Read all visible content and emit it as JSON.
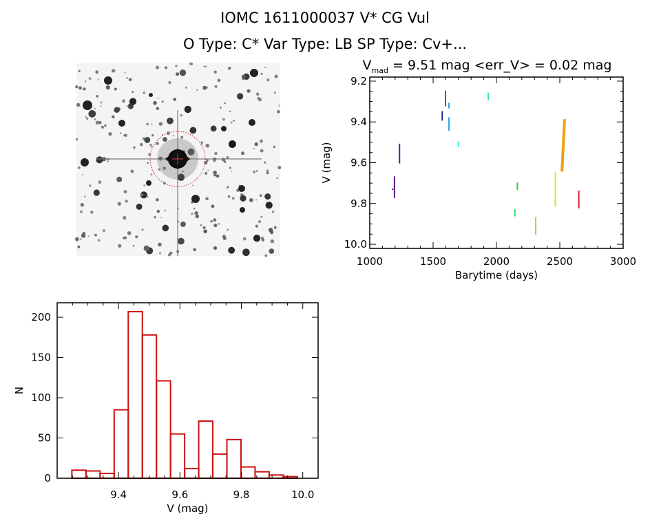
{
  "header": {
    "title": "IOMC 1611000037    V* CG Vul",
    "subtitle": "O Type: C*   Var Type: LB   SP Type: Cv+..."
  },
  "image_panel": {
    "description_icon": "star-field-image"
  },
  "chart_data": [
    {
      "type": "scatter",
      "title_main": "V",
      "title_sub": "mad",
      "title_rest": " = 9.51 mag <err_V> = 0.02 mag",
      "xlabel": "Barytime (days)",
      "ylabel": "V (mag)",
      "xlim": [
        1000,
        3000
      ],
      "ylim": [
        9.18,
        10.02
      ],
      "y_inverted": true,
      "xticks": [
        1000,
        1500,
        2000,
        2500,
        3000
      ],
      "yticks": [
        9.2,
        9.4,
        9.6,
        9.8,
        10.0
      ],
      "ytick_labels": [
        "9.2",
        "9.4",
        "9.6",
        "9.8",
        "10.0"
      ],
      "grid": false,
      "clusters": [
        {
          "x": 1195,
          "v_min": 9.67,
          "v_max": 9.77,
          "color": "#5a1a8a"
        },
        {
          "x": 1180,
          "v_min": 9.73,
          "v_max": 9.73,
          "color": "#5a1a8a"
        },
        {
          "x": 1235,
          "v_min": 9.51,
          "v_max": 9.6,
          "color": "#4b1a9a"
        },
        {
          "x": 1572,
          "v_min": 9.35,
          "v_max": 9.39,
          "color": "#1a2aa0"
        },
        {
          "x": 1598,
          "v_min": 9.25,
          "v_max": 9.32,
          "color": "#2060d0"
        },
        {
          "x": 1625,
          "v_min": 9.31,
          "v_max": 9.33,
          "color": "#30a0e0"
        },
        {
          "x": 1625,
          "v_min": 9.38,
          "v_max": 9.44,
          "color": "#30a8e0"
        },
        {
          "x": 1700,
          "v_min": 9.5,
          "v_max": 9.52,
          "color": "#30e0e0"
        },
        {
          "x": 1935,
          "v_min": 9.26,
          "v_max": 9.29,
          "color": "#30e0a0"
        },
        {
          "x": 2145,
          "v_min": 9.83,
          "v_max": 9.86,
          "color": "#30e060"
        },
        {
          "x": 2165,
          "v_min": 9.7,
          "v_max": 9.73,
          "color": "#30d030"
        },
        {
          "x": 2310,
          "v_min": 9.87,
          "v_max": 9.95,
          "color": "#90e040"
        },
        {
          "x": 2465,
          "v_min": 9.65,
          "v_max": 9.81,
          "color": "#e0e020"
        },
        {
          "x": 2522,
          "v_min": 9.39,
          "v_max": 9.64,
          "color": "#f0a010"
        },
        {
          "x": 2650,
          "v_min": 9.74,
          "v_max": 9.82,
          "color": "#d02020"
        }
      ]
    },
    {
      "type": "bar",
      "subtype": "histogram",
      "xlabel": "V (mag)",
      "ylabel": "N",
      "xlim": [
        9.2,
        10.05
      ],
      "ylim": [
        0,
        218
      ],
      "xticks": [
        9.4,
        9.6,
        9.8,
        10.0
      ],
      "xtick_labels": [
        "9.4",
        "9.6",
        "9.8",
        "10.0"
      ],
      "yticks": [
        0,
        50,
        100,
        150,
        200
      ],
      "bin_start": 9.248,
      "bin_width": 0.0459,
      "values": [
        10,
        9,
        6,
        85,
        207,
        178,
        121,
        55,
        12,
        71,
        30,
        48,
        14,
        8,
        4,
        2
      ],
      "bar_color": "#cc1111",
      "grid": false
    }
  ]
}
